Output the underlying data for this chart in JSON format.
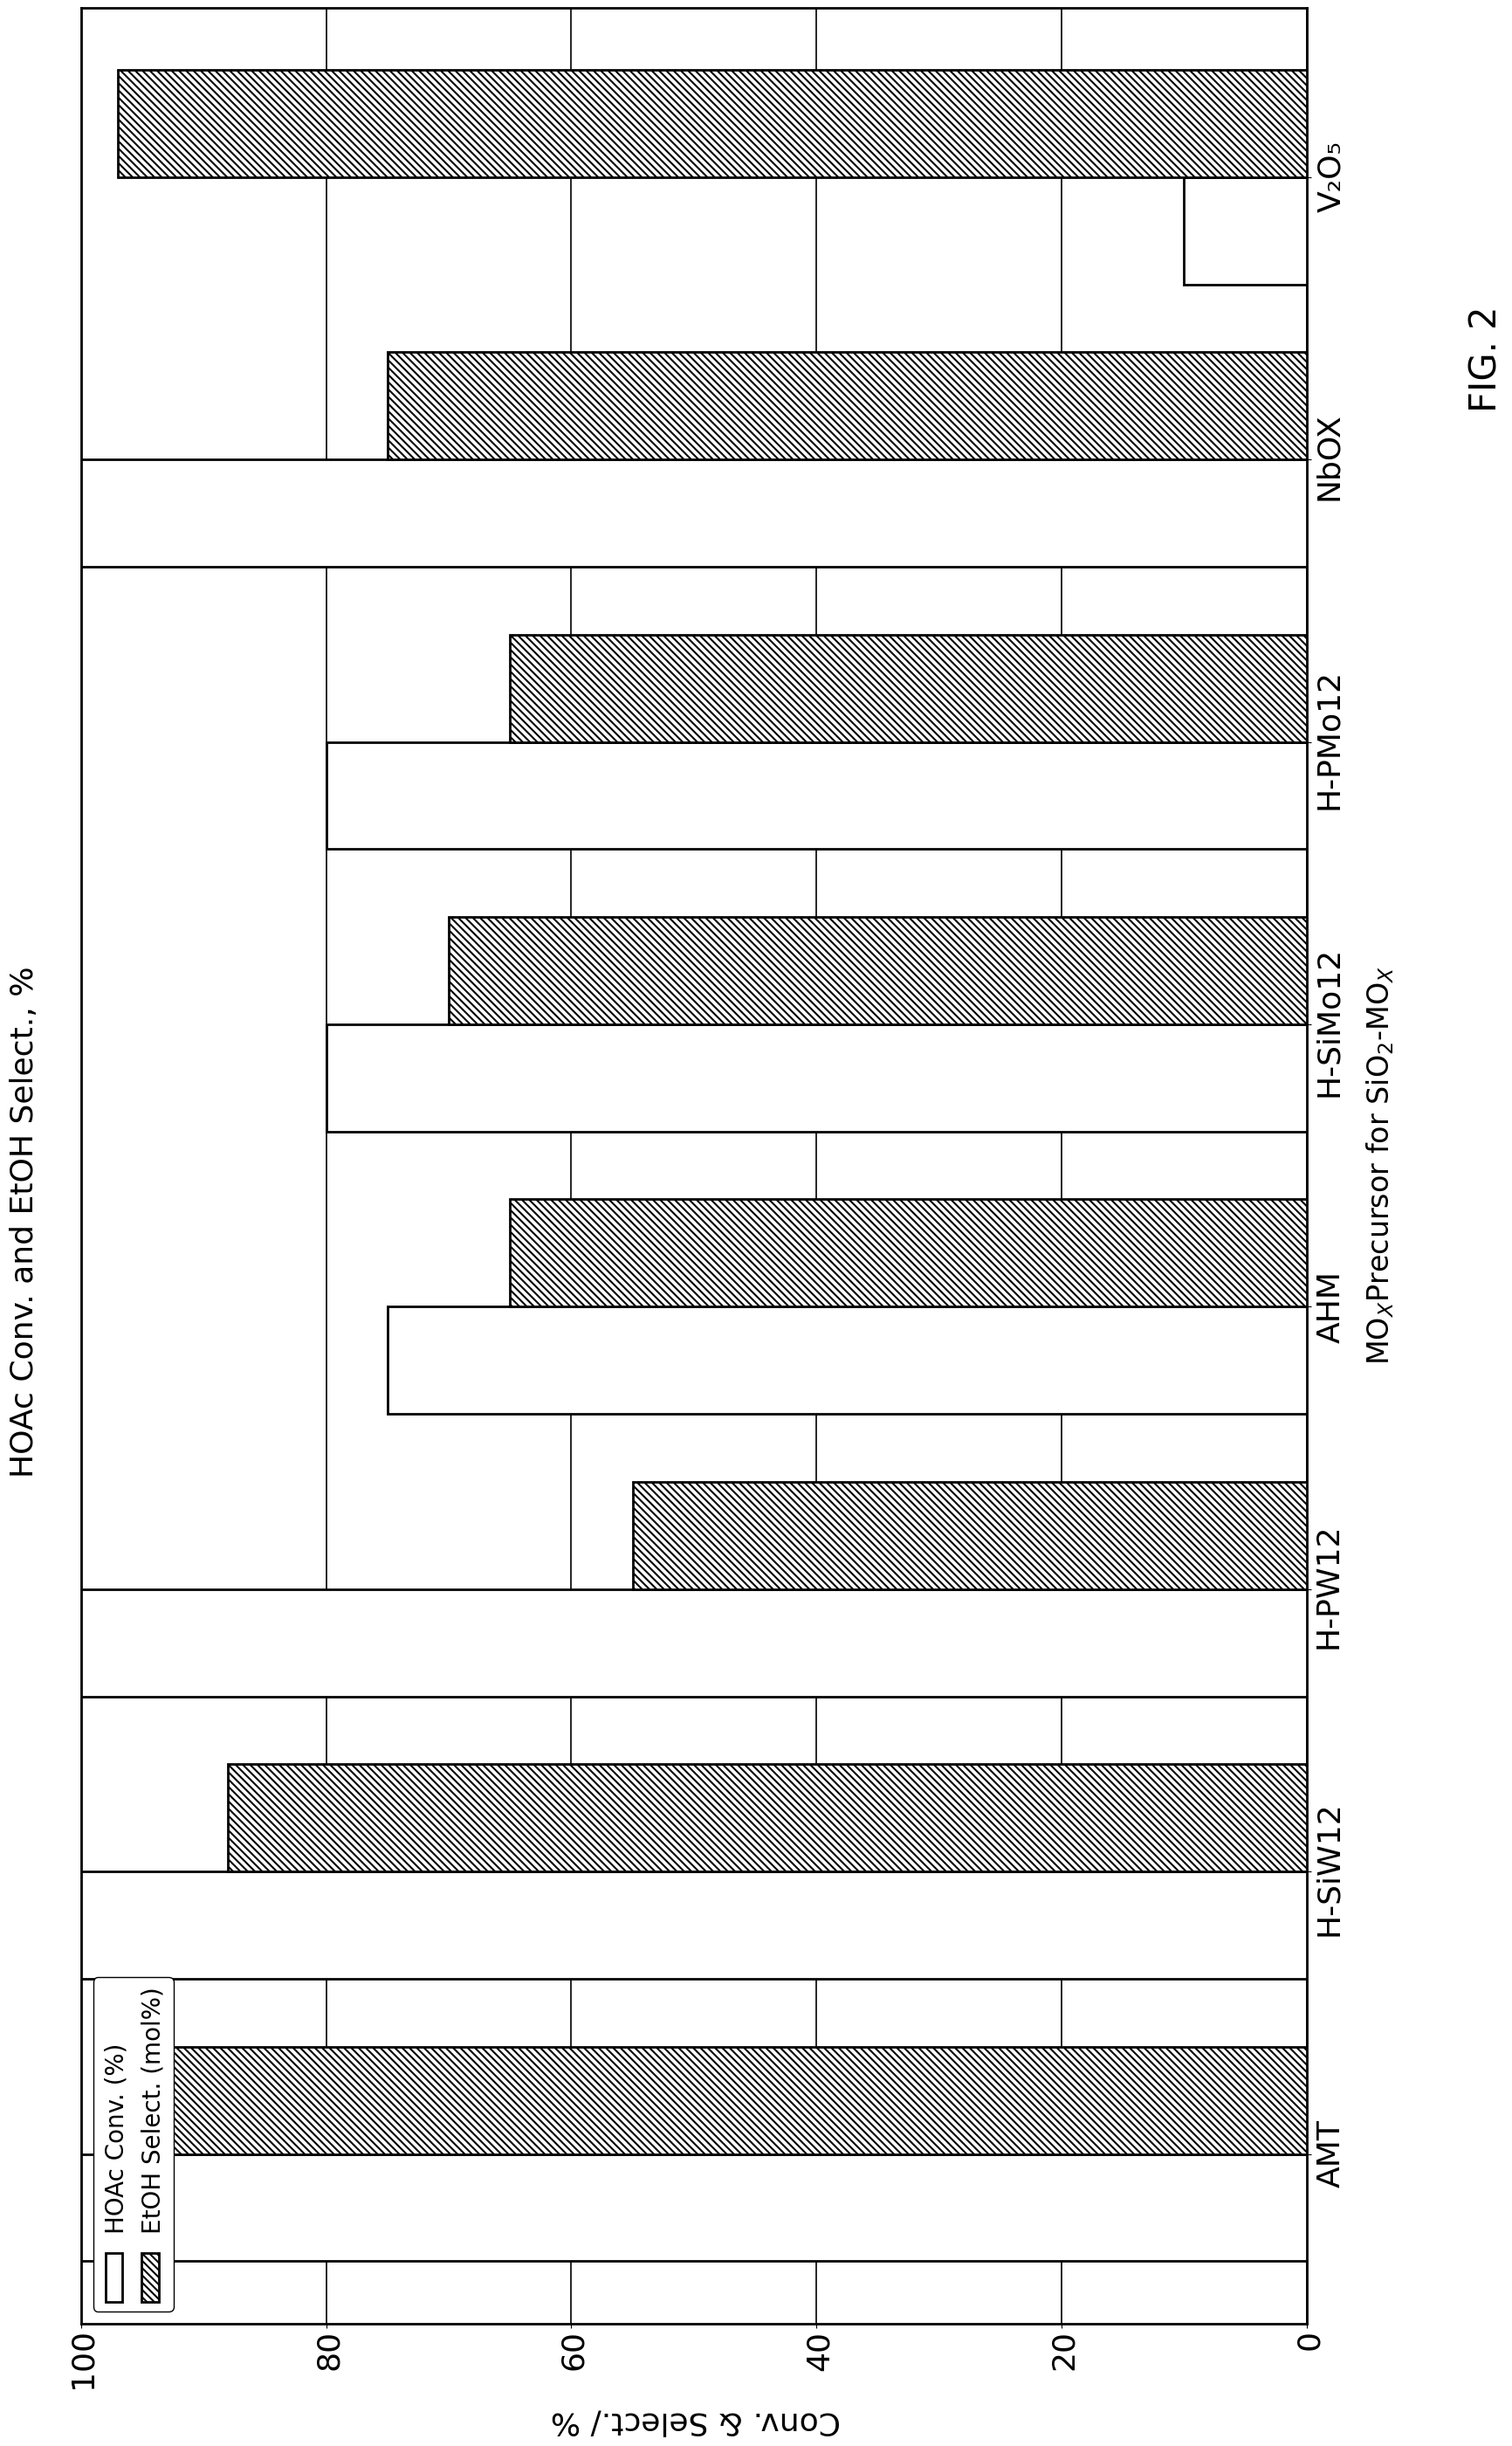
{
  "categories": [
    "AMT",
    "H-SiW12",
    "H-PW12",
    "AHM",
    "H-SiMo12",
    "H-PMo12",
    "NbOX",
    "V₂O₅"
  ],
  "hoac_conv": [
    100,
    100,
    100,
    75,
    80,
    80,
    100,
    10
  ],
  "etoh_select": [
    97,
    88,
    55,
    65,
    70,
    65,
    75,
    97
  ],
  "bar_edgecolor": "#000000",
  "hatch_select": "////",
  "title": "HOAc Conv. and EtOH Select., %",
  "x_axis_label": "Conv. & Select./ %",
  "y_axis_label": "MOₓPrecursor for SiO₂-MOₓ",
  "ylim": [
    0,
    100
  ],
  "yticks": [
    0,
    20,
    40,
    60,
    80,
    100
  ],
  "legend_labels": [
    "HOAc Conv. (%)",
    "EtOH Select. (mol%)"
  ],
  "fig_label": "FIG. 2",
  "background_color": "#ffffff"
}
